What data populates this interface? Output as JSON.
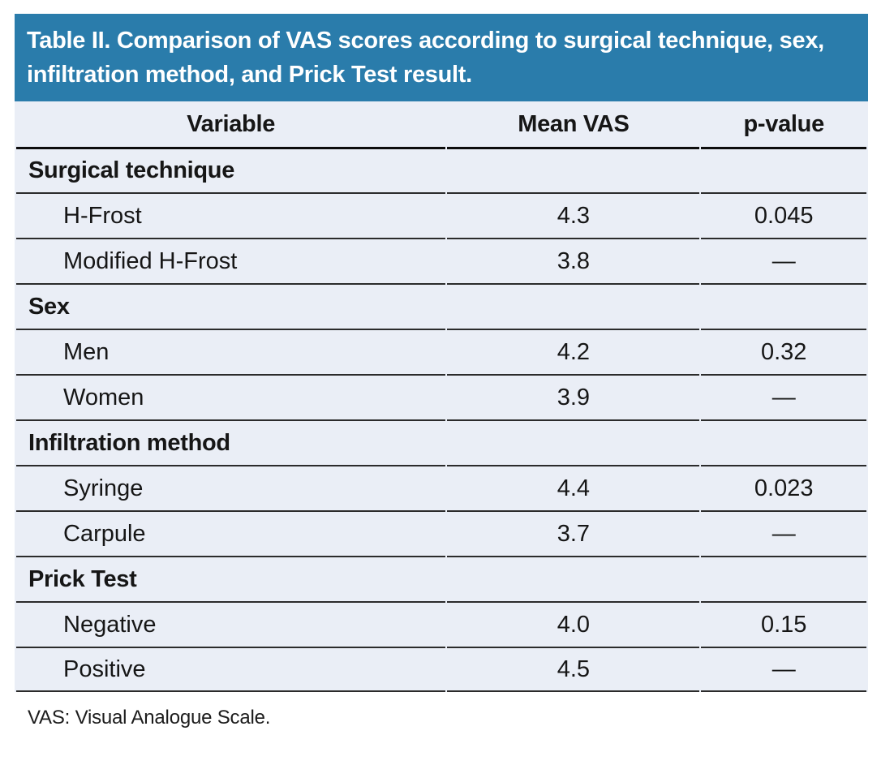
{
  "table": {
    "title": "Table II. Comparison of VAS scores according to surgical technique, sex, infiltration method, and Prick Test result.",
    "columns": [
      "Variable",
      "Mean VAS",
      "p-value"
    ],
    "sections": [
      {
        "header": "Surgical technique",
        "rows": [
          {
            "variable": "H-Frost",
            "mean_vas": "4.3",
            "p_value": "0.045"
          },
          {
            "variable": "Modified H-Frost",
            "mean_vas": "3.8",
            "p_value": "—"
          }
        ]
      },
      {
        "header": "Sex",
        "rows": [
          {
            "variable": "Men",
            "mean_vas": "4.2",
            "p_value": "0.32"
          },
          {
            "variable": "Women",
            "mean_vas": "3.9",
            "p_value": "—"
          }
        ]
      },
      {
        "header": "Infiltration method",
        "rows": [
          {
            "variable": "Syringe",
            "mean_vas": "4.4",
            "p_value": "0.023"
          },
          {
            "variable": "Carpule",
            "mean_vas": "3.7",
            "p_value": "—"
          }
        ]
      },
      {
        "header": "Prick Test",
        "rows": [
          {
            "variable": "Negative",
            "mean_vas": "4.0",
            "p_value": "0.15"
          },
          {
            "variable": "Positive",
            "mean_vas": "4.5",
            "p_value": "—"
          }
        ]
      }
    ],
    "footnote": "VAS: Visual Analogue Scale.",
    "colors": {
      "title_bg": "#2a7cab",
      "title_text": "#ffffff",
      "row_bg": "#eaeef6",
      "rule": "#2b2b2b"
    }
  }
}
